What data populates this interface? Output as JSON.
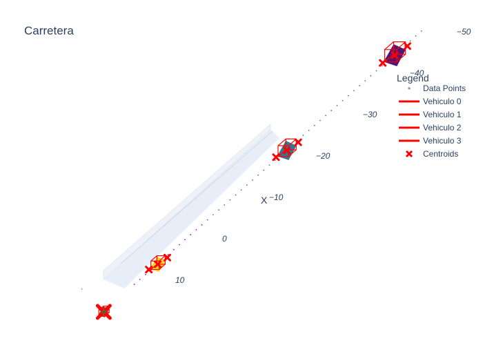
{
  "chart_data": {
    "type": "scatter3d",
    "title": "Carretera",
    "axis_title_x": "X",
    "x_ticks": [
      -50,
      -40,
      -30,
      -20,
      -10,
      0,
      10
    ],
    "x_tick_labels": [
      "−50",
      "−40",
      "−30",
      "−20",
      "−10",
      "0",
      "10"
    ],
    "legend_title": "Legend",
    "legend": [
      {
        "name": "Data Points",
        "symbol": "dot",
        "color": "#8c8c8c"
      },
      {
        "name": "Vehiculo 0",
        "symbol": "line",
        "color": "#ff0000"
      },
      {
        "name": "Vehiculo 1",
        "symbol": "line",
        "color": "#ff0000"
      },
      {
        "name": "Vehiculo 2",
        "symbol": "line",
        "color": "#ff0000"
      },
      {
        "name": "Vehiculo 3",
        "symbol": "line",
        "color": "#ff0000"
      },
      {
        "name": "Centroids",
        "symbol": "x",
        "color": "#ff0000"
      }
    ],
    "vehicles": [
      {
        "name": "Vehiculo 0",
        "x": 10.5,
        "color": "#ffd700"
      },
      {
        "name": "Vehiculo 1",
        "x": -17,
        "color": "#2b6f8a"
      },
      {
        "name": "Vehiculo 2",
        "x": -40,
        "color": "#4b0a6a"
      },
      {
        "name": "Vehiculo 3",
        "x": 22,
        "color": "#7a5030"
      }
    ],
    "colors": {
      "box": "#ff0000",
      "road": "#e5ecf6",
      "centroid": "#ff0000"
    }
  }
}
